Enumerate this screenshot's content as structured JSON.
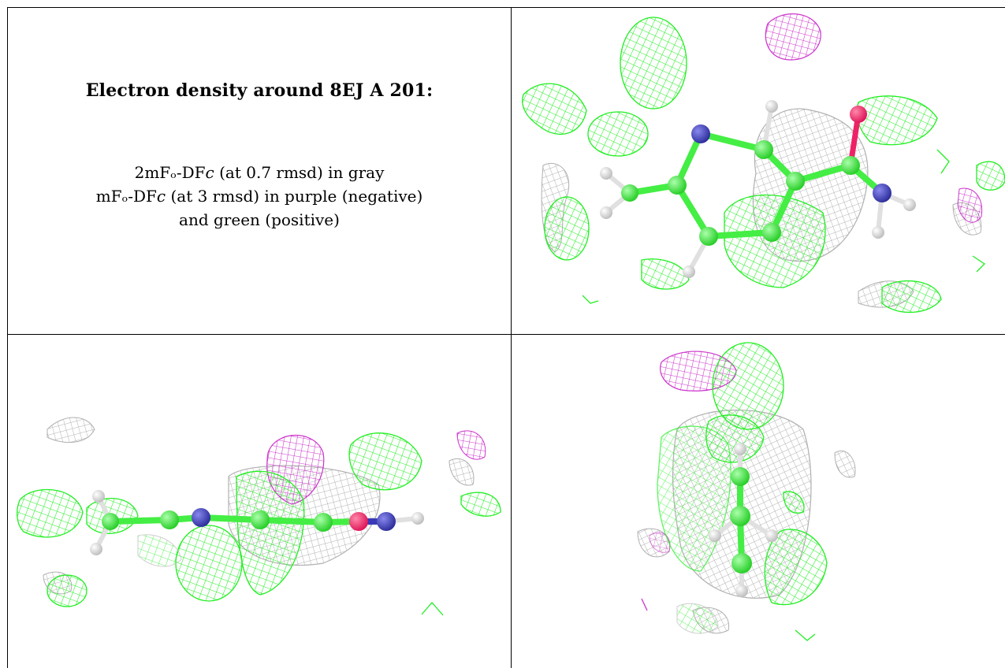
{
  "caption": {
    "title": "Electron density around 8EJ A 201:",
    "legend_lines": [
      "2mFₒ-DF𝑐 (at 0.7 rmsd) in gray",
      "mFₒ-DF𝑐 (at 3 rmsd) in purple (negative)",
      "and green (positive)"
    ]
  },
  "colors": {
    "map_2fofc": "#b8b8b8",
    "map_fofc_negative": "#cc33cc",
    "map_fofc_positive": "#22ee22",
    "carbon": "#44ee44",
    "nitrogen": "#3a3ab8",
    "oxygen": "#ee2266",
    "hydrogen": "#e6e6e6"
  },
  "panels": [
    {
      "view": "top"
    },
    {
      "view": "side"
    },
    {
      "view": "end-on"
    }
  ]
}
